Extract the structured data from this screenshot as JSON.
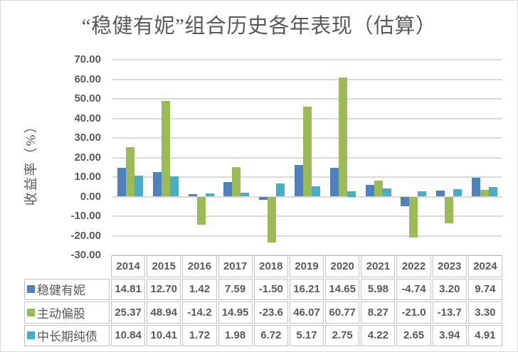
{
  "chart_data": {
    "type": "bar",
    "title": "“稳健有妮”组合历史各年表现（估算）",
    "ylabel": "收益率（%）",
    "categories": [
      "2014",
      "2015",
      "2016",
      "2017",
      "2018",
      "2019",
      "2020",
      "2021",
      "2022",
      "2023",
      "2024"
    ],
    "series": [
      {
        "name": "稳健有妮",
        "color": "#4F81BD",
        "values": [
          14.81,
          12.7,
          1.42,
          7.59,
          -1.5,
          16.21,
          14.65,
          5.98,
          -4.74,
          3.2,
          9.74
        ],
        "labels": [
          "14.81",
          "12.70",
          "1.42",
          "7.59",
          "-1.50",
          "16.21",
          "14.65",
          "5.98",
          "-4.74",
          "3.20",
          "9.74"
        ]
      },
      {
        "name": "主动偏股",
        "color": "#9BBB59",
        "values": [
          25.37,
          48.94,
          -14.2,
          14.95,
          -23.6,
          46.07,
          60.77,
          8.27,
          -21.0,
          -13.7,
          3.3
        ],
        "labels": [
          "25.37",
          "48.94",
          "-14.2",
          "14.95",
          "-23.6",
          "46.07",
          "60.77",
          "8.27",
          "-21.0",
          "-13.7",
          "3.30"
        ]
      },
      {
        "name": "中长期纯债",
        "color": "#4BACC6",
        "values": [
          10.84,
          10.41,
          1.72,
          1.98,
          6.72,
          5.17,
          2.75,
          4.22,
          2.65,
          3.94,
          4.91
        ],
        "labels": [
          "10.84",
          "10.41",
          "1.72",
          "1.98",
          "6.72",
          "5.17",
          "2.75",
          "4.22",
          "2.65",
          "3.94",
          "4.91"
        ]
      }
    ],
    "ylim": [
      -30,
      70
    ],
    "ytick_step": 10,
    "ytick_labels": [
      "70.00",
      "60.00",
      "50.00",
      "40.00",
      "30.00",
      "20.00",
      "10.00",
      "0.00",
      "-10.00",
      "-20.00",
      "-30.00"
    ],
    "grid": true,
    "legend_position": "table-left",
    "colors": {
      "text": "#595959",
      "gridline": "#D9D9D9",
      "cell_border": "#C3C3C3",
      "frame_border": "#D9D9D9"
    }
  }
}
